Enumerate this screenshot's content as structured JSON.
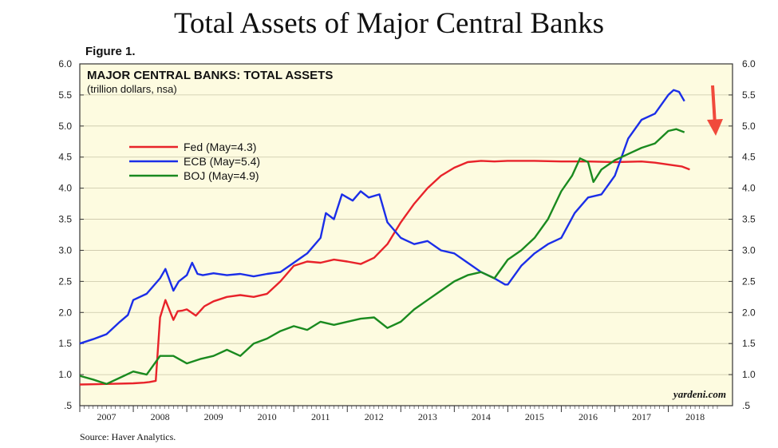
{
  "page": {
    "title": "Total Assets of Major Central Banks",
    "figure_label": "Figure 1.",
    "source": "Source: Haver Analytics."
  },
  "chart_data": {
    "type": "line",
    "title": "MAJOR CENTRAL BANKS: TOTAL ASSETS",
    "subtitle": "(trillion dollars, nsa)",
    "watermark": "yardeni.com",
    "xlabel": "",
    "ylabel": "",
    "x_ticks": [
      "2007",
      "2008",
      "2009",
      "2010",
      "2011",
      "2012",
      "2013",
      "2014",
      "2015",
      "2016",
      "2017",
      "2018"
    ],
    "xlim": [
      2007,
      2019.2
    ],
    "y_ticks": [
      ".5",
      "1.0",
      "1.5",
      "2.0",
      "2.5",
      "3.0",
      "3.5",
      "4.0",
      "4.5",
      "5.0",
      "5.5",
      "6.0"
    ],
    "ylim": [
      0.5,
      6.0
    ],
    "y_axes": "both",
    "grid": "horizontal",
    "legend_position": "upper-left",
    "annotation": "red downward arrow at the right edge",
    "series": [
      {
        "name": "Fed (May=4.3)",
        "color": "#e8232a",
        "x": [
          2007.0,
          2007.5,
          2008.0,
          2008.2,
          2008.3,
          2008.42,
          2008.5,
          2008.6,
          2008.75,
          2008.83,
          2008.92,
          2009.0,
          2009.17,
          2009.33,
          2009.5,
          2009.75,
          2010.0,
          2010.25,
          2010.5,
          2010.75,
          2011.0,
          2011.25,
          2011.5,
          2011.75,
          2012.0,
          2012.25,
          2012.5,
          2012.75,
          2013.0,
          2013.25,
          2013.5,
          2013.75,
          2014.0,
          2014.25,
          2014.5,
          2014.75,
          2015.0,
          2015.5,
          2016.0,
          2016.5,
          2017.0,
          2017.5,
          2017.75,
          2018.0,
          2018.25,
          2018.4
        ],
        "values": [
          0.84,
          0.85,
          0.86,
          0.87,
          0.88,
          0.9,
          1.92,
          2.2,
          1.88,
          2.02,
          2.03,
          2.05,
          1.95,
          2.1,
          2.18,
          2.25,
          2.28,
          2.25,
          2.3,
          2.5,
          2.75,
          2.82,
          2.8,
          2.85,
          2.82,
          2.78,
          2.88,
          3.1,
          3.45,
          3.75,
          4.0,
          4.2,
          4.33,
          4.42,
          4.44,
          4.43,
          4.44,
          4.44,
          4.43,
          4.43,
          4.42,
          4.43,
          4.41,
          4.38,
          4.35,
          4.3
        ]
      },
      {
        "name": "ECB (May=5.4)",
        "color": "#1b2ee8",
        "x": [
          2007.0,
          2007.25,
          2007.5,
          2007.75,
          2007.9,
          2008.0,
          2008.25,
          2008.5,
          2008.6,
          2008.75,
          2008.85,
          2009.0,
          2009.1,
          2009.2,
          2009.3,
          2009.5,
          2009.75,
          2010.0,
          2010.25,
          2010.5,
          2010.75,
          2011.0,
          2011.25,
          2011.5,
          2011.6,
          2011.75,
          2011.9,
          2012.0,
          2012.1,
          2012.25,
          2012.4,
          2012.6,
          2012.75,
          2012.9,
          2013.0,
          2013.25,
          2013.5,
          2013.75,
          2014.0,
          2014.25,
          2014.5,
          2014.75,
          2014.95,
          2015.0,
          2015.25,
          2015.5,
          2015.75,
          2016.0,
          2016.25,
          2016.5,
          2016.75,
          2017.0,
          2017.25,
          2017.5,
          2017.75,
          2018.0,
          2018.1,
          2018.2,
          2018.3
        ],
        "values": [
          1.5,
          1.57,
          1.65,
          1.85,
          1.96,
          2.2,
          2.3,
          2.55,
          2.7,
          2.35,
          2.5,
          2.6,
          2.8,
          2.62,
          2.6,
          2.63,
          2.6,
          2.62,
          2.58,
          2.62,
          2.65,
          2.8,
          2.95,
          3.2,
          3.6,
          3.5,
          3.9,
          3.85,
          3.8,
          3.95,
          3.85,
          3.9,
          3.45,
          3.3,
          3.2,
          3.1,
          3.15,
          3.0,
          2.95,
          2.8,
          2.65,
          2.55,
          2.45,
          2.45,
          2.75,
          2.95,
          3.1,
          3.2,
          3.6,
          3.85,
          3.9,
          4.2,
          4.8,
          5.1,
          5.2,
          5.5,
          5.58,
          5.55,
          5.4
        ]
      },
      {
        "name": "BOJ (May=4.9)",
        "color": "#1a8a1f",
        "x": [
          2007.0,
          2007.25,
          2007.5,
          2007.75,
          2008.0,
          2008.25,
          2008.5,
          2008.75,
          2009.0,
          2009.25,
          2009.5,
          2009.75,
          2010.0,
          2010.25,
          2010.5,
          2010.75,
          2011.0,
          2011.25,
          2011.5,
          2011.75,
          2012.0,
          2012.25,
          2012.5,
          2012.75,
          2013.0,
          2013.25,
          2013.5,
          2013.75,
          2014.0,
          2014.25,
          2014.5,
          2014.75,
          2015.0,
          2015.25,
          2015.5,
          2015.75,
          2016.0,
          2016.2,
          2016.35,
          2016.5,
          2016.6,
          2016.75,
          2017.0,
          2017.25,
          2017.5,
          2017.75,
          2018.0,
          2018.15,
          2018.3
        ],
        "values": [
          0.98,
          0.92,
          0.85,
          0.95,
          1.05,
          1.0,
          1.3,
          1.3,
          1.18,
          1.25,
          1.3,
          1.4,
          1.3,
          1.5,
          1.58,
          1.7,
          1.78,
          1.72,
          1.85,
          1.8,
          1.85,
          1.9,
          1.92,
          1.75,
          1.85,
          2.05,
          2.2,
          2.35,
          2.5,
          2.6,
          2.65,
          2.55,
          2.85,
          3.0,
          3.2,
          3.5,
          3.95,
          4.2,
          4.48,
          4.42,
          4.1,
          4.3,
          4.45,
          4.55,
          4.65,
          4.72,
          4.92,
          4.95,
          4.9
        ]
      }
    ]
  }
}
